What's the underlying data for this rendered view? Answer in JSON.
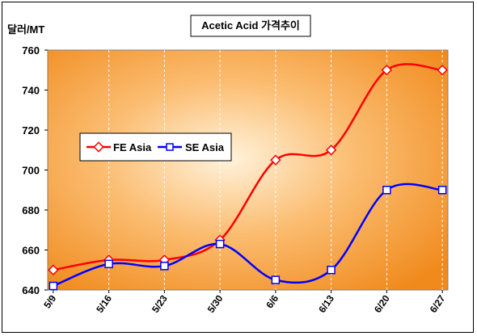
{
  "chart_data": {
    "type": "line",
    "title": "Acetic Acid 가격추이",
    "ylabel": "달러/MT",
    "xlabel": "",
    "categories": [
      "5/9",
      "5/16",
      "5/23",
      "5/30",
      "6/6",
      "6/13",
      "6/20",
      "6/27"
    ],
    "ylim": [
      640,
      760
    ],
    "yticks": [
      640,
      660,
      680,
      700,
      720,
      740,
      760
    ],
    "grid": true,
    "legend_position": "middle-left",
    "series": [
      {
        "name": "FE Asia",
        "values": [
          650,
          655,
          655,
          665,
          705,
          710,
          750,
          750
        ],
        "color": "#ff0000",
        "marker": "diamond"
      },
      {
        "name": "SE Asia",
        "values": [
          642,
          653,
          652,
          663,
          645,
          650,
          690,
          690
        ],
        "color": "#0000ff",
        "marker": "square"
      }
    ]
  }
}
